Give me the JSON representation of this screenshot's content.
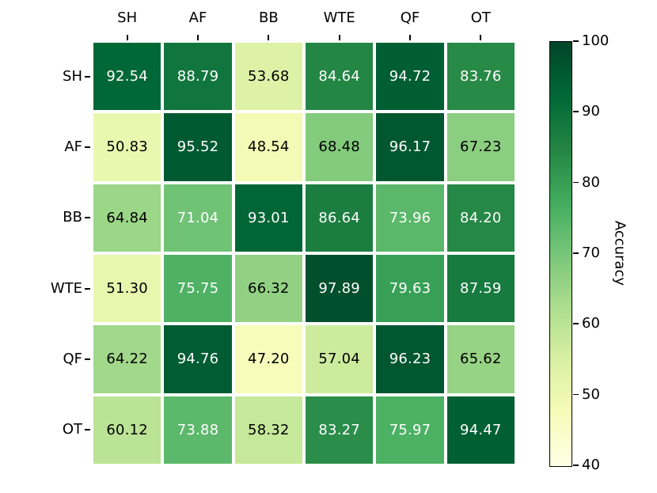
{
  "chart_data": {
    "type": "heatmap",
    "title": "",
    "xlabel": "",
    "ylabel": "",
    "x_categories": [
      "SH",
      "AF",
      "BB",
      "WTE",
      "QF",
      "OT"
    ],
    "y_categories": [
      "SH",
      "AF",
      "BB",
      "WTE",
      "QF",
      "OT"
    ],
    "values": [
      [
        92.54,
        88.79,
        53.68,
        84.64,
        94.72,
        83.76
      ],
      [
        50.83,
        95.52,
        48.54,
        68.48,
        96.17,
        67.23
      ],
      [
        64.84,
        71.04,
        93.01,
        86.64,
        73.96,
        84.2
      ],
      [
        51.3,
        75.75,
        66.32,
        97.89,
        79.63,
        87.59
      ],
      [
        64.22,
        94.76,
        47.2,
        57.04,
        96.23,
        65.62
      ],
      [
        60.12,
        73.88,
        58.32,
        83.27,
        75.97,
        94.47
      ]
    ],
    "value_decimals": 2,
    "colorbar": {
      "label": "Accuracy",
      "ticks": [
        40,
        50,
        60,
        70,
        80,
        90,
        100
      ],
      "vmin": 40,
      "vmax": 100,
      "position": "right"
    },
    "colormap": {
      "name": "YlGn",
      "stops": [
        "#ffffe5",
        "#f7fcb9",
        "#d9f0a3",
        "#addd8e",
        "#78c679",
        "#41ab5d",
        "#238443",
        "#006837",
        "#004529"
      ]
    },
    "cell_text_colors": {
      "above_threshold": "#ffffff",
      "below_threshold": "#000000",
      "threshold": 70
    },
    "grid_line_color": "#ffffff",
    "axis_ticks_position": "top-left",
    "legend_position": "right-colorbar"
  }
}
